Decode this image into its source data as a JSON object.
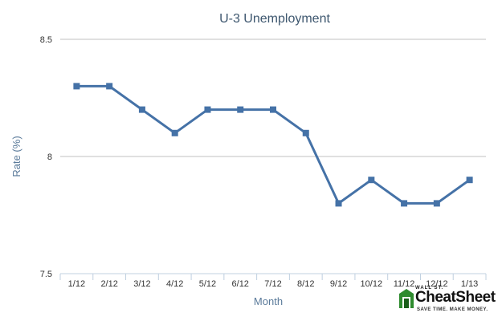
{
  "chart_data": {
    "type": "line",
    "title": "U-3 Unemployment",
    "xlabel": "Month",
    "ylabel": "Rate (%)",
    "categories": [
      "1/12",
      "2/12",
      "3/12",
      "4/12",
      "5/12",
      "6/12",
      "7/12",
      "8/12",
      "9/12",
      "10/12",
      "11/12",
      "12/12",
      "1/13"
    ],
    "series": [
      {
        "values": [
          8.3,
          8.3,
          8.2,
          8.1,
          8.2,
          8.2,
          8.2,
          8.1,
          7.8,
          7.9,
          7.8,
          7.8,
          7.9
        ]
      }
    ],
    "ylim": [
      7.5,
      8.5
    ],
    "yticks": [
      7.5,
      8,
      8.5
    ],
    "grid": true,
    "legend": "none",
    "colors": {
      "series": "#4572a7"
    }
  },
  "logo": {
    "top_text": "WALL ST.",
    "brand": "CheatSheet",
    "tagline": "SAVE TIME. MAKE MONEY."
  }
}
